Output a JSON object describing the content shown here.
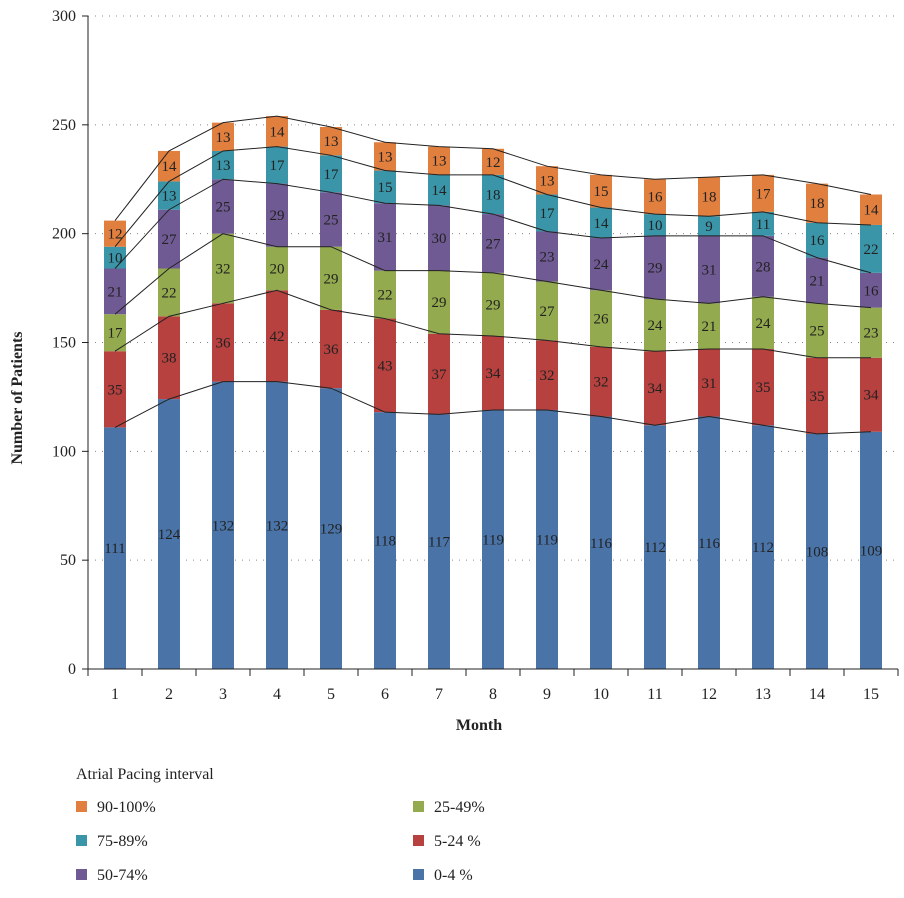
{
  "chart_data": {
    "type": "bar",
    "stacked": true,
    "xlabel": "Month",
    "ylabel": "Number of Patients",
    "ylim": [
      0,
      300
    ],
    "yticks": [
      0,
      50,
      100,
      150,
      200,
      250,
      300
    ],
    "grid": "horizontal dotted",
    "categories": [
      "1",
      "2",
      "3",
      "4",
      "5",
      "6",
      "7",
      "8",
      "9",
      "10",
      "11",
      "12",
      "13",
      "14",
      "15"
    ],
    "series": [
      {
        "name": "0-4 %",
        "color": "#4a74a8",
        "values": [
          111,
          124,
          132,
          132,
          129,
          118,
          117,
          119,
          119,
          116,
          112,
          116,
          112,
          108,
          109
        ]
      },
      {
        "name": "5-24 %",
        "color": "#b6413f",
        "values": [
          35,
          38,
          36,
          42,
          36,
          43,
          37,
          34,
          32,
          32,
          34,
          31,
          35,
          35,
          34
        ]
      },
      {
        "name": "25-49%",
        "color": "#93aa4e",
        "values": [
          17,
          22,
          32,
          20,
          29,
          22,
          29,
          29,
          27,
          26,
          24,
          21,
          24,
          25,
          23
        ]
      },
      {
        "name": "50-74%",
        "color": "#705a93",
        "values": [
          21,
          27,
          25,
          29,
          25,
          31,
          30,
          27,
          23,
          24,
          29,
          31,
          28,
          21,
          16
        ]
      },
      {
        "name": "75-89%",
        "color": "#3b95a8",
        "values": [
          10,
          13,
          13,
          17,
          17,
          15,
          14,
          18,
          17,
          14,
          10,
          9,
          11,
          16,
          22
        ]
      },
      {
        "name": "90-100%",
        "color": "#e07f3e",
        "values": [
          12,
          14,
          13,
          14,
          13,
          13,
          13,
          12,
          13,
          15,
          16,
          18,
          17,
          18,
          14
        ]
      }
    ],
    "legend": {
      "title": "Atrial Pacing interval",
      "position": "bottom",
      "order": [
        "90-100%",
        "25-49%",
        "75-89%",
        "5-24 %",
        "50-74%",
        "0-4 %"
      ]
    }
  }
}
